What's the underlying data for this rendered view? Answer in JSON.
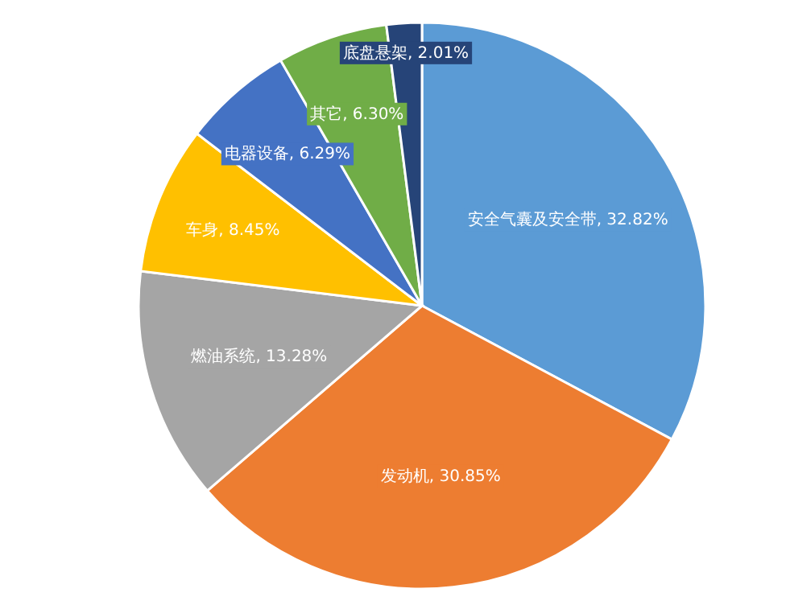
{
  "chart_data": {
    "type": "pie",
    "categories": [
      "安全气囊及安全带",
      "发动机",
      "燃油系统",
      "车身",
      "电器设备",
      "其它",
      "底盘悬架"
    ],
    "values": [
      32.82,
      30.85,
      13.28,
      8.45,
      6.29,
      6.3,
      2.01
    ],
    "colors": [
      "#5b9bd5",
      "#ed7d31",
      "#a5a5a5",
      "#ffc000",
      "#4472c4",
      "#70ad47",
      "#264478"
    ],
    "value_labels": [
      "32.82%",
      "30.85%",
      "13.28%",
      "8.45%",
      "6.29%",
      "6.30%",
      "2.01%"
    ]
  }
}
